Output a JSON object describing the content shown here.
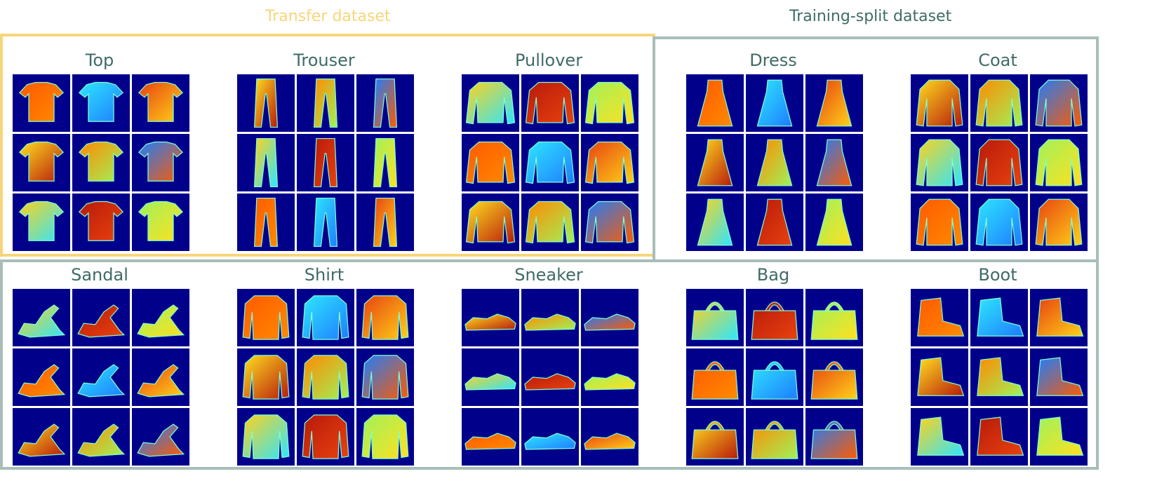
{
  "regions": {
    "transfer": {
      "title": "Transfer dataset",
      "color": "#f7d57a"
    },
    "training": {
      "title": "Training-split dataset",
      "color": "#a8bdb9"
    }
  },
  "colors": {
    "panel_title": "#3f6b66",
    "cell_bg": "#00008b"
  },
  "panels": [
    {
      "title": "Top",
      "region": "transfer",
      "item": "top"
    },
    {
      "title": "Trouser",
      "region": "transfer",
      "item": "trouser"
    },
    {
      "title": "Pullover",
      "region": "transfer",
      "item": "pullover"
    },
    {
      "title": "Dress",
      "region": "training",
      "item": "dress"
    },
    {
      "title": "Coat",
      "region": "training",
      "item": "coat"
    },
    {
      "title": "Sandal",
      "region": "training",
      "item": "sandal"
    },
    {
      "title": "Shirt",
      "region": "training",
      "item": "shirt"
    },
    {
      "title": "Sneaker",
      "region": "training",
      "item": "sneaker"
    },
    {
      "title": "Bag",
      "region": "training",
      "item": "bag"
    },
    {
      "title": "Boot",
      "region": "training",
      "item": "boot"
    }
  ],
  "palette": [
    "#ff5a00",
    "#2ee6ff",
    "#e8420f",
    "#ffe020",
    "#ff8a00",
    "#1e7dff",
    "#ffd21a",
    "#b81a0a",
    "#9ff25a"
  ]
}
